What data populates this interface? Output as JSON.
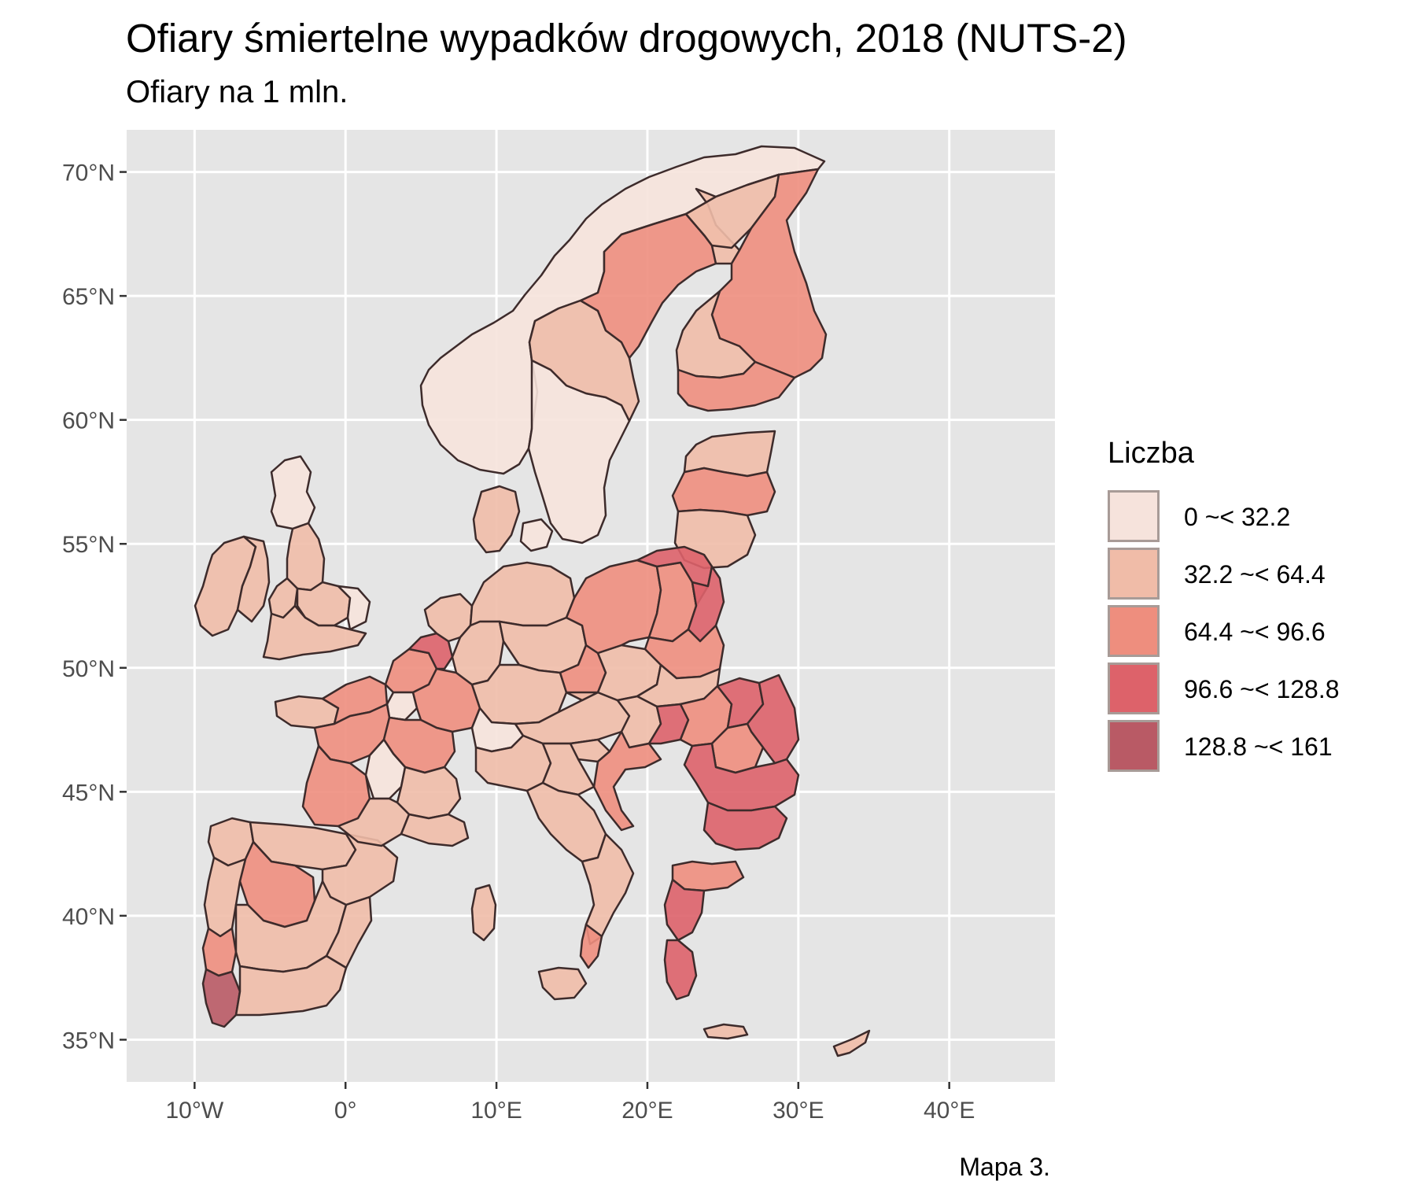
{
  "title": "Ofiary śmiertelne wypadków drogowych, 2018 (NUTS-2)",
  "subtitle": "Ofiary na 1 mln.",
  "caption": "Mapa 3.",
  "panel_background": "#e5e5e5",
  "gridline_color": "#ffffff",
  "region_border_color": "#3d2b2b",
  "axes": {
    "x_ticks": [
      "10°W",
      "0°",
      "10°E",
      "20°E",
      "30°E",
      "40°E"
    ],
    "y_ticks": [
      "70°N",
      "65°N",
      "60°N",
      "55°N",
      "50°N",
      "45°N",
      "40°N",
      "35°N"
    ],
    "xlim": [
      -14.5,
      47
    ],
    "ylim": [
      33.3,
      71.7
    ]
  },
  "legend": {
    "title": "Liczba",
    "items": [
      {
        "label": "0 ~< 32.2",
        "color": "#f6e3dc"
      },
      {
        "label": "32.2 ~< 64.4",
        "color": "#f0bca8"
      },
      {
        "label": "64.4 ~< 96.6",
        "color": "#ee8e7e"
      },
      {
        "label": "96.6 ~< 128.8",
        "color": "#dd626a"
      },
      {
        "label": "128.8 ~< 161",
        "color": "#b95a65"
      }
    ]
  }
}
